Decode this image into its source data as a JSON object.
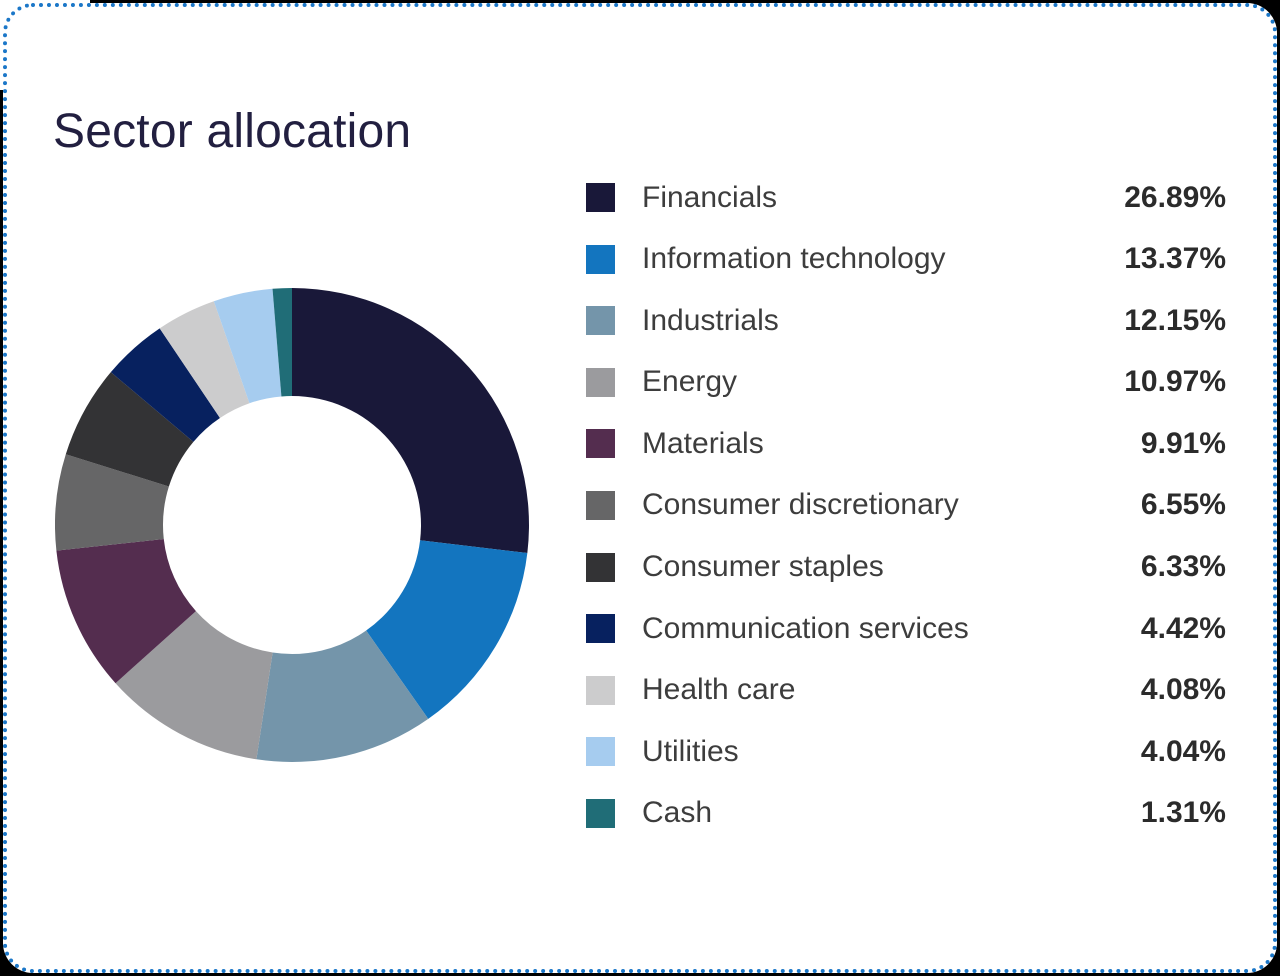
{
  "header": {
    "title": "Sector allocation"
  },
  "style": {
    "card_background": "#ffffff",
    "card_border": "#1b77c8",
    "outside_background": "#000000",
    "title_color": "#221f40",
    "label_color": "#3d3d3d",
    "value_color": "#2b2b2b"
  },
  "chart_data": {
    "type": "pie",
    "subtype": "donut",
    "title": "Sector allocation",
    "start_angle_deg": 0,
    "direction": "clockwise",
    "inner_radius_ratio": 0.545,
    "legend_position": "right",
    "categories": [
      "Financials",
      "Information technology",
      "Industrials",
      "Energy",
      "Materials",
      "Consumer discretionary",
      "Consumer staples",
      "Communication services",
      "Health care",
      "Utilities",
      "Cash"
    ],
    "values": [
      26.89,
      13.37,
      12.15,
      10.97,
      9.91,
      6.55,
      6.33,
      4.42,
      4.08,
      4.04,
      1.31
    ],
    "value_labels": [
      "26.89%",
      "13.37%",
      "12.15%",
      "10.97%",
      "9.91%",
      "6.55%",
      "6.33%",
      "4.42%",
      "4.08%",
      "4.04%",
      "1.31%"
    ],
    "colors": [
      "#191839",
      "#1375bf",
      "#7495aa",
      "#9b9b9e",
      "#542d4f",
      "#666667",
      "#333335",
      "#07215f",
      "#cccccd",
      "#a6ccef",
      "#206d77"
    ]
  }
}
